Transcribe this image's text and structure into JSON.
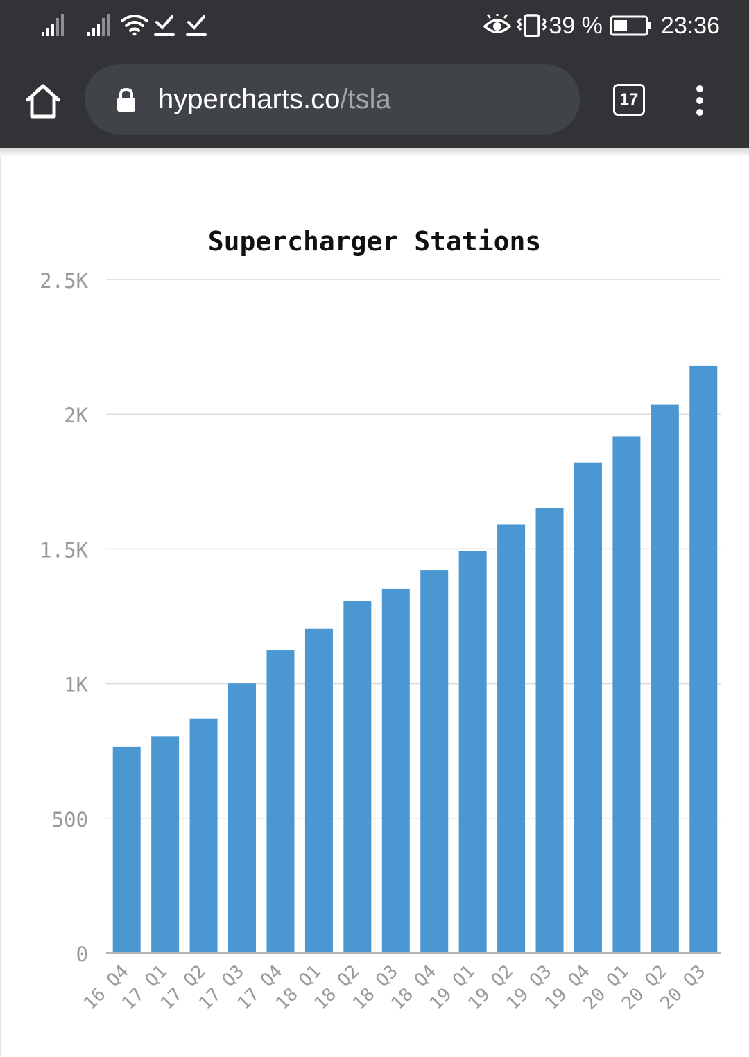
{
  "status_bar": {
    "battery_percent": "39 %",
    "time": "23:36",
    "icons": [
      "signal-icon",
      "signal-icon",
      "wifi-icon",
      "download-done-icon",
      "download-done-icon",
      "eye-icon",
      "vibrate-icon",
      "battery-icon"
    ]
  },
  "browser": {
    "url_host": "hypercharts.co",
    "url_path": "/tsla",
    "tab_count": "17",
    "icons": [
      "home-icon",
      "lock-icon",
      "more-vert-icon"
    ]
  },
  "colors": {
    "bar": "#4a97d2",
    "toolbar": "#323336",
    "grid": "#dcdcdc"
  },
  "chart_data": {
    "type": "bar",
    "title": "Supercharger Stations",
    "xlabel": "",
    "ylabel": "",
    "categories": [
      "16 Q4",
      "17 Q1",
      "17 Q2",
      "17 Q3",
      "17 Q4",
      "18 Q1",
      "18 Q2",
      "18 Q3",
      "18 Q4",
      "19 Q1",
      "19 Q2",
      "19 Q3",
      "19 Q4",
      "20 Q1",
      "20 Q2",
      "20 Q3"
    ],
    "values": [
      765,
      805,
      871,
      1001,
      1125,
      1203,
      1307,
      1352,
      1421,
      1491,
      1590,
      1653,
      1821,
      1917,
      2035,
      2181
    ],
    "ylim": [
      0,
      2500
    ],
    "yticks": [
      {
        "value": 0,
        "label": "0"
      },
      {
        "value": 500,
        "label": "500"
      },
      {
        "value": 1000,
        "label": "1K"
      },
      {
        "value": 1500,
        "label": "1.5K"
      },
      {
        "value": 2000,
        "label": "2K"
      },
      {
        "value": 2500,
        "label": "2.5K"
      }
    ],
    "grid": true,
    "legend": "none"
  }
}
